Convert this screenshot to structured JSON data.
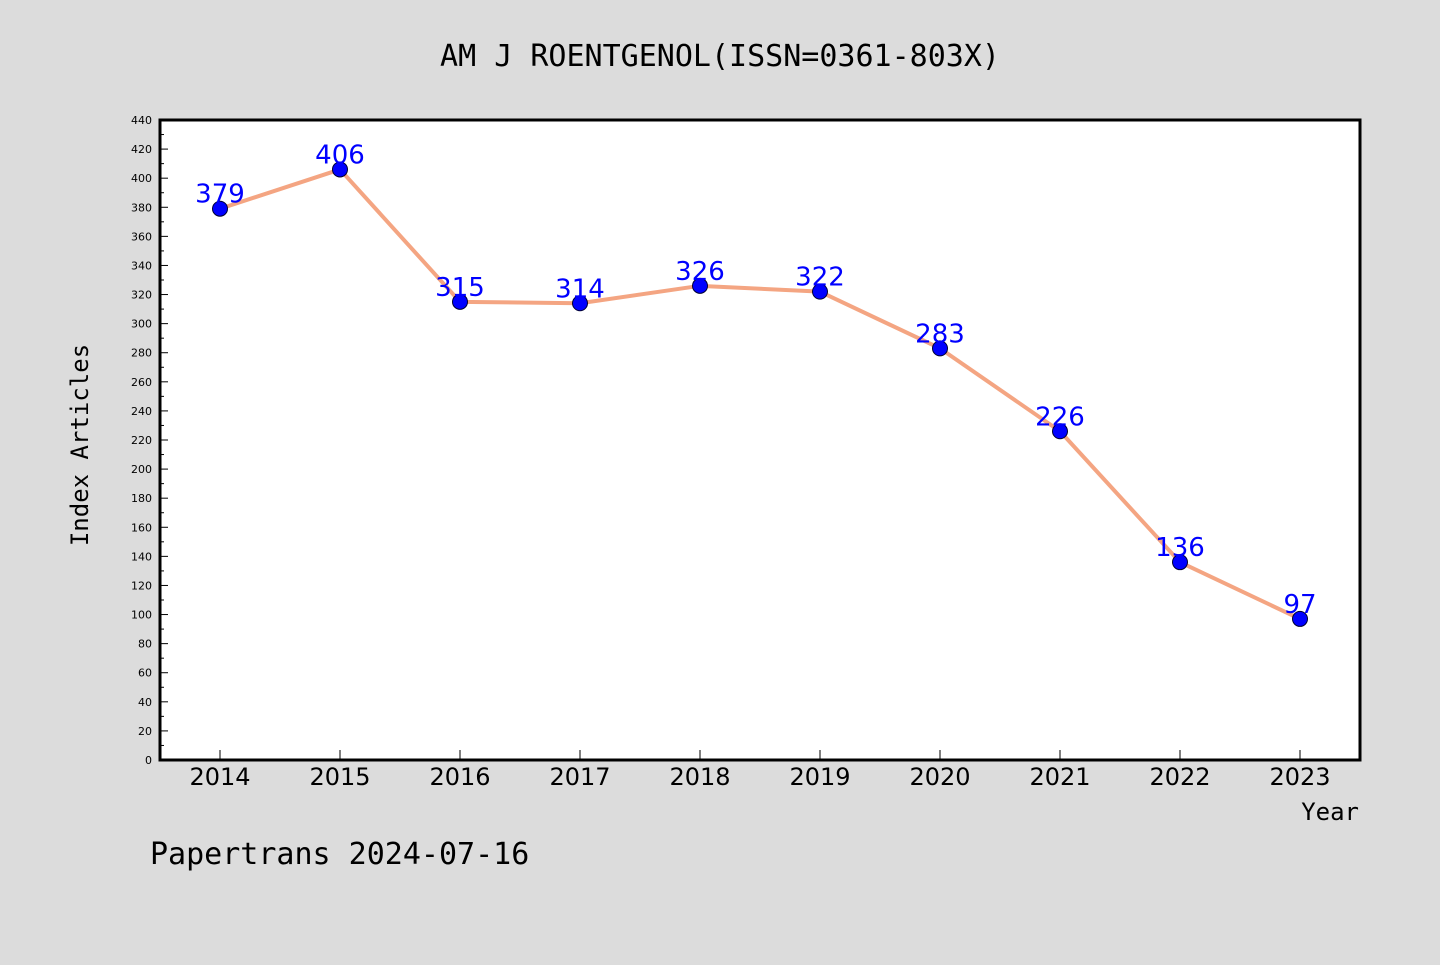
{
  "chart_data": {
    "type": "line",
    "title": "AM J ROENTGENOL(ISSN=0361-803X)",
    "xlabel": "Year",
    "ylabel": "Index Articles",
    "footer": "Papertrans 2024-07-16",
    "categories": [
      "2014",
      "2015",
      "2016",
      "2017",
      "2018",
      "2019",
      "2020",
      "2021",
      "2022",
      "2023"
    ],
    "values": [
      379,
      406,
      315,
      314,
      326,
      322,
      283,
      226,
      136,
      97
    ],
    "ylim": [
      0,
      440
    ],
    "yticks": [
      0,
      20,
      40,
      60,
      80,
      100,
      120,
      140,
      160,
      180,
      200,
      220,
      240,
      260,
      280,
      300,
      320,
      340,
      360,
      380,
      400,
      420,
      440
    ],
    "grid": false,
    "line_color": "#f4a582",
    "marker_color": "#0000ff",
    "label_color": "#0000ff",
    "background": "#dcdcdc",
    "plot_background": "#ffffff"
  }
}
